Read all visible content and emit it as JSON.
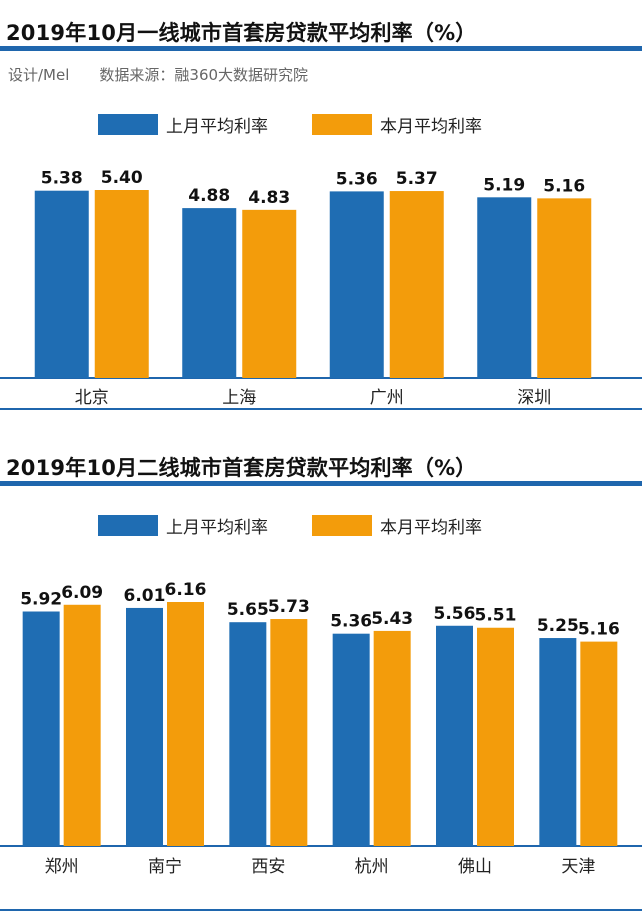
{
  "colors": {
    "last_month": "#1f6db3",
    "this_month": "#f39c0b",
    "rule": "#1f66ad"
  },
  "meta": {
    "design": "设计/Mel",
    "source": "数据来源：融360大数据研究院"
  },
  "chart_data": [
    {
      "type": "bar",
      "title": "2019年10月一线城市首套房贷款平均利率（%）",
      "legend_position": "top",
      "categories": [
        "北京",
        "上海",
        "广州",
        "深圳"
      ],
      "series": [
        {
          "name": "上月平均利率",
          "values": [
            5.38,
            4.88,
            5.36,
            5.19
          ],
          "labels": [
            "5.38",
            "4.88",
            "5.36",
            "5.19"
          ]
        },
        {
          "name": "本月平均利率",
          "values": [
            5.4,
            4.83,
            5.37,
            5.16
          ],
          "labels": [
            "5.40",
            "4.83",
            "5.37",
            "5.16"
          ]
        }
      ]
    },
    {
      "type": "bar",
      "title": "2019年10月二线城市首套房贷款平均利率（%）",
      "legend_position": "top",
      "categories": [
        "郑州",
        "南宁",
        "西安",
        "杭州",
        "佛山",
        "天津"
      ],
      "series": [
        {
          "name": "上月平均利率",
          "values": [
            5.92,
            6.01,
            5.65,
            5.36,
            5.56,
            5.25
          ],
          "labels": [
            "5.92",
            "6.01",
            "5.65",
            "5.36",
            "5.56",
            "5.25"
          ]
        },
        {
          "name": "本月平均利率",
          "values": [
            6.09,
            6.16,
            5.73,
            5.43,
            5.51,
            5.16
          ],
          "labels": [
            "6.09",
            "6.16",
            "5.73",
            "5.43",
            "5.51",
            "5.16"
          ]
        }
      ]
    }
  ]
}
